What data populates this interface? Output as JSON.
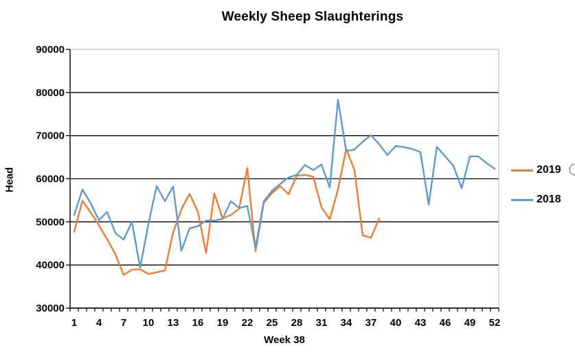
{
  "title": "Weekly Sheep Slaughterings",
  "y_axis": {
    "label": "Head"
  },
  "x_axis": {
    "label": "Week 38"
  },
  "legend": {
    "items": [
      {
        "label": "2019",
        "color": "#ED7D31"
      },
      {
        "label": "2018",
        "color": "#5B9BD5"
      }
    ],
    "position": "right"
  },
  "colors": {
    "series_2019": "#ED7D31",
    "series_2018": "#5B9BD5",
    "gridline": "#000000",
    "axis": "#000000",
    "plot_top_border": "#BFBFBF",
    "plot_right_border": "#BFBFBF",
    "text": "#000000"
  },
  "chart_data": {
    "type": "line",
    "title": "Weekly Sheep Slaughterings",
    "xlabel": "Week 38",
    "ylabel": "Head",
    "ylim": [
      30000,
      90000
    ],
    "xlim": [
      1,
      52
    ],
    "y_ticks": [
      30000,
      40000,
      50000,
      60000,
      70000,
      80000,
      90000
    ],
    "x_ticks": [
      1,
      4,
      7,
      10,
      13,
      16,
      19,
      22,
      25,
      28,
      31,
      34,
      37,
      40,
      43,
      46,
      49,
      52
    ],
    "grid": true,
    "legend_position": "right",
    "x_categories_total": 52,
    "series": [
      {
        "name": "2019",
        "color": "#ED7D31",
        "start_week": 1,
        "values": [
          47700,
          54900,
          52200,
          49200,
          46000,
          42500,
          37700,
          38900,
          39000,
          37900,
          38300,
          38700,
          47500,
          52900,
          56500,
          52400,
          42800,
          56600,
          50800,
          51600,
          53000,
          62500,
          43200,
          54400,
          56700,
          58300,
          56400,
          60700,
          60900,
          60500,
          53400,
          50600,
          57500,
          66900,
          62000,
          46900,
          46300,
          50800
        ]
      },
      {
        "name": "2018",
        "color": "#5B9BD5",
        "start_week": 1,
        "values": [
          51600,
          57500,
          54300,
          50400,
          52300,
          47400,
          45900,
          50000,
          39400,
          49500,
          58300,
          54800,
          58200,
          43300,
          48500,
          49000,
          50300,
          50300,
          50700,
          54800,
          53200,
          53700,
          44000,
          54800,
          57200,
          58800,
          60300,
          60900,
          63200,
          62000,
          63300,
          58000,
          78300,
          66400,
          66800,
          68600,
          70100,
          68000,
          65500,
          67600,
          67300,
          66900,
          66200,
          54000,
          67400,
          65200,
          63000,
          57800,
          65200,
          65200,
          63700,
          62300
        ]
      }
    ]
  }
}
